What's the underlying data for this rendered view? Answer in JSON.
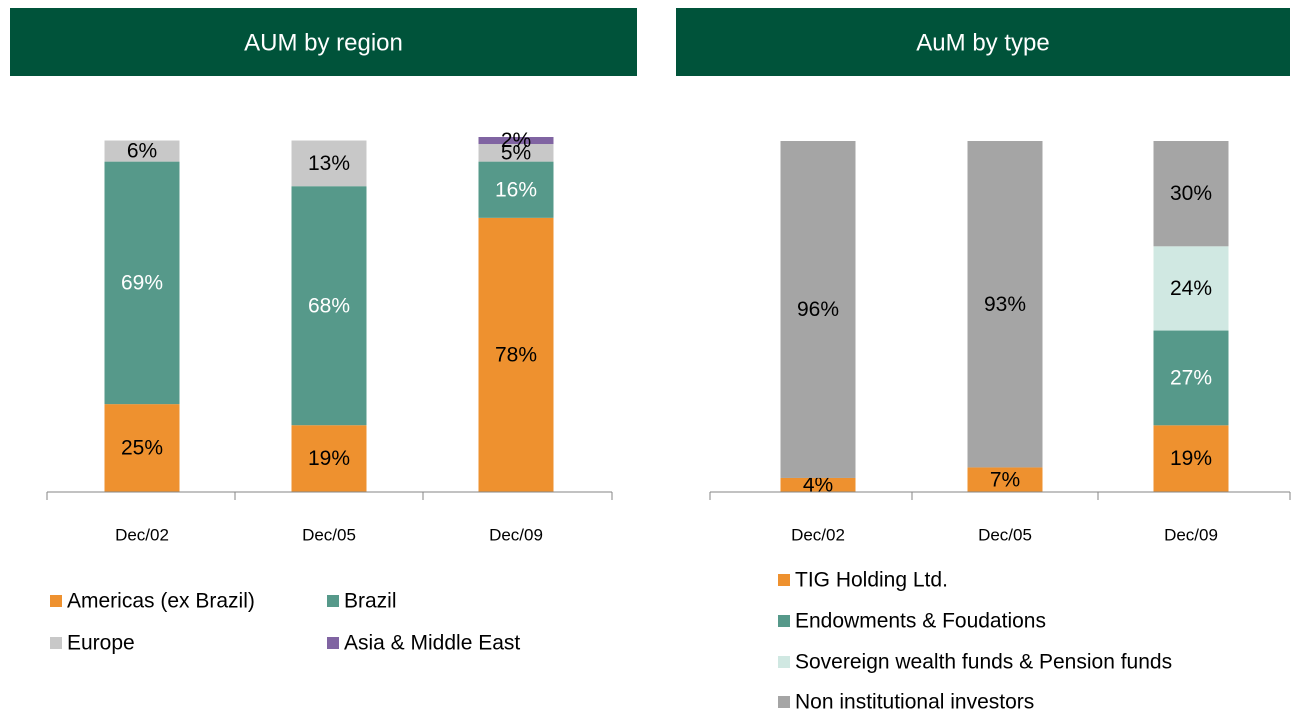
{
  "chart_data": [
    {
      "type": "stacked_bar",
      "title": "AUM by region",
      "categories": [
        "Dec/02",
        "Dec/05",
        "Dec/09"
      ],
      "series": [
        {
          "name": "Americas (ex Brazil)",
          "color": "#EE912F",
          "label_color": "#000000",
          "values": [
            25,
            19,
            78
          ],
          "value_labels": [
            "25%",
            "19%",
            "78%"
          ]
        },
        {
          "name": "Brazil",
          "color": "#56998A",
          "label_color": "#FFFFFF",
          "values": [
            69,
            68,
            16
          ],
          "value_labels": [
            "69%",
            "68%",
            "16%"
          ]
        },
        {
          "name": "Europe",
          "color": "#C8C8C8",
          "label_color": "#000000",
          "values": [
            6,
            13,
            5
          ],
          "value_labels": [
            "6%",
            "13%",
            "5%"
          ]
        },
        {
          "name": "Asia & Middle East",
          "color": "#8064A2",
          "label_color": "#000000",
          "values": [
            null,
            null,
            2
          ],
          "value_labels": [
            null,
            null,
            "2%"
          ]
        }
      ]
    },
    {
      "type": "stacked_bar",
      "title": "AuM by type",
      "categories": [
        "Dec/02",
        "Dec/05",
        "Dec/09"
      ],
      "series": [
        {
          "name": "TIG Holding Ltd.",
          "color": "#EE912F",
          "label_color": "#000000",
          "values": [
            4,
            7,
            19
          ],
          "value_labels": [
            "4%",
            "7%",
            "19%"
          ]
        },
        {
          "name": "Endowments & Foudations",
          "color": "#56998A",
          "label_color": "#FFFFFF",
          "values": [
            null,
            null,
            27
          ],
          "value_labels": [
            null,
            null,
            "27%"
          ]
        },
        {
          "name": "Sovereign wealth funds & Pension funds",
          "color": "#D0E8E2",
          "label_color": "#000000",
          "values": [
            null,
            null,
            24
          ],
          "value_labels": [
            null,
            null,
            "24%"
          ]
        },
        {
          "name": "Non institutional investors",
          "color": "#A5A5A5",
          "label_color": "#000000",
          "values": [
            96,
            93,
            30
          ],
          "value_labels": [
            "96%",
            "93%",
            "30%"
          ]
        }
      ]
    }
  ]
}
